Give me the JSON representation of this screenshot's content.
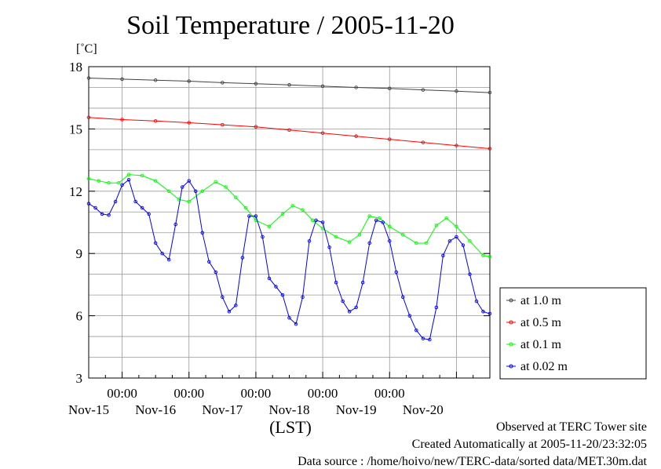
{
  "chart_data": {
    "type": "scatter",
    "title": "Soil Temperature / 2005-11-20",
    "ylabel": "[˚C]",
    "xlabel": "(LST)",
    "ylim": [
      3,
      18
    ],
    "yticks": [
      "3",
      "6",
      "9",
      "12",
      "15",
      "18"
    ],
    "x_unit": "days since Nov-14 00:00 LST",
    "xlim": [
      0.5,
      6.5
    ],
    "time_ticks": [
      "00:00",
      "00:00",
      "00:00",
      "00:00",
      "00:00"
    ],
    "day_labels": [
      "Nov-15",
      "Nov-16",
      "Nov-17",
      "Nov-18",
      "Nov-19",
      "Nov-20"
    ],
    "grid": true,
    "legend_position": "right",
    "series": [
      {
        "name": "at 1.0 m",
        "color": "#404040",
        "x": [
          0.5,
          1.0,
          1.5,
          2.0,
          2.5,
          3.0,
          3.5,
          4.0,
          4.5,
          5.0,
          5.5,
          6.0,
          6.5
        ],
        "y": [
          17.45,
          17.4,
          17.35,
          17.3,
          17.23,
          17.18,
          17.12,
          17.06,
          17.0,
          16.95,
          16.88,
          16.82,
          16.75
        ]
      },
      {
        "name": "at 0.5 m",
        "color": "#ff0000",
        "x": [
          0.5,
          1.0,
          1.5,
          2.0,
          2.5,
          3.0,
          3.5,
          4.0,
          4.5,
          5.0,
          5.5,
          6.0,
          6.5
        ],
        "y": [
          15.55,
          15.45,
          15.38,
          15.3,
          15.2,
          15.1,
          14.95,
          14.8,
          14.65,
          14.5,
          14.35,
          14.2,
          14.05
        ]
      },
      {
        "name": "at 0.1 m",
        "color": "#00ff00",
        "x": [
          0.5,
          0.65,
          0.8,
          0.95,
          1.1,
          1.3,
          1.5,
          1.7,
          1.85,
          2.0,
          2.2,
          2.4,
          2.55,
          2.7,
          2.85,
          3.0,
          3.2,
          3.4,
          3.55,
          3.7,
          3.85,
          4.0,
          4.2,
          4.4,
          4.55,
          4.7,
          4.85,
          5.0,
          5.2,
          5.4,
          5.55,
          5.7,
          5.85,
          6.0,
          6.2,
          6.4,
          6.5
        ],
        "y": [
          12.6,
          12.5,
          12.4,
          12.4,
          12.8,
          12.75,
          12.5,
          12.0,
          11.6,
          11.5,
          12.0,
          12.45,
          12.2,
          11.7,
          11.2,
          10.6,
          10.3,
          10.9,
          11.3,
          11.1,
          10.6,
          10.2,
          9.8,
          9.55,
          9.9,
          10.8,
          10.7,
          10.3,
          9.9,
          9.5,
          9.5,
          10.35,
          10.7,
          10.3,
          9.6,
          8.9,
          8.85
        ]
      },
      {
        "name": "at 0.02 m",
        "color": "#0000ff",
        "x": [
          0.5,
          0.6,
          0.7,
          0.8,
          0.9,
          1.0,
          1.1,
          1.2,
          1.3,
          1.4,
          1.5,
          1.6,
          1.7,
          1.8,
          1.9,
          2.0,
          2.1,
          2.2,
          2.3,
          2.4,
          2.5,
          2.6,
          2.7,
          2.8,
          2.9,
          3.0,
          3.1,
          3.2,
          3.3,
          3.4,
          3.5,
          3.6,
          3.7,
          3.8,
          3.9,
          4.0,
          4.1,
          4.2,
          4.3,
          4.4,
          4.5,
          4.6,
          4.7,
          4.8,
          4.9,
          5.0,
          5.1,
          5.2,
          5.3,
          5.4,
          5.5,
          5.6,
          5.7,
          5.8,
          5.9,
          6.0,
          6.1,
          6.2,
          6.3,
          6.4,
          6.5
        ],
        "y": [
          11.4,
          11.2,
          10.9,
          10.85,
          11.5,
          12.3,
          12.55,
          11.5,
          11.2,
          10.9,
          9.5,
          9.0,
          8.7,
          10.4,
          12.2,
          12.5,
          12.0,
          10.0,
          8.6,
          8.1,
          6.9,
          6.2,
          6.5,
          8.8,
          10.8,
          10.8,
          9.8,
          7.8,
          7.4,
          7.0,
          5.9,
          5.6,
          6.9,
          9.6,
          10.6,
          10.5,
          9.3,
          7.6,
          6.7,
          6.2,
          6.4,
          7.6,
          9.5,
          10.6,
          10.5,
          9.6,
          8.1,
          6.9,
          6.0,
          5.3,
          4.9,
          4.85,
          6.4,
          8.9,
          9.6,
          9.8,
          9.4,
          8.0,
          6.7,
          6.2,
          6.1
        ]
      }
    ]
  },
  "footer": {
    "observed": "Observed at TERC Tower site",
    "created": "Created Automatically at 2005-11-20/23:32:05",
    "source": "Data source : /home/hoivo/new/TERC-data/sorted  data/MET.30m.dat"
  }
}
